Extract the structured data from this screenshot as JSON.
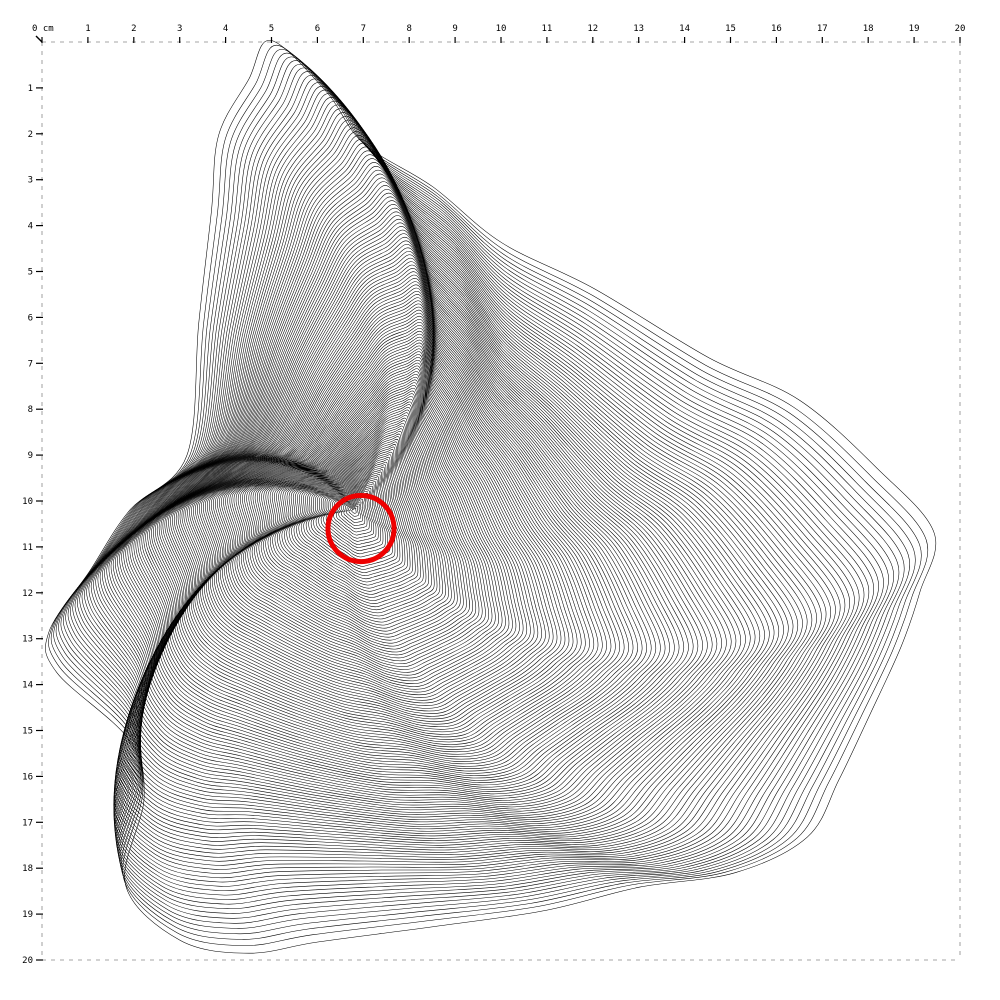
{
  "ruler": {
    "unit": "cm",
    "min": 0,
    "max": 20,
    "step": 1,
    "top_labels": [
      "0 cm",
      "1",
      "2",
      "3",
      "4",
      "5",
      "6",
      "7",
      "8",
      "9",
      "10",
      "11",
      "12",
      "13",
      "14",
      "15",
      "16",
      "17",
      "18",
      "19",
      "20"
    ],
    "left_labels": [
      "1",
      "2",
      "3",
      "4",
      "5",
      "6",
      "7",
      "8",
      "9",
      "10",
      "11",
      "12",
      "13",
      "14",
      "15",
      "16",
      "17",
      "18",
      "19",
      "20"
    ]
  },
  "artwork": {
    "description_icon": "contour-line-drawing",
    "line_color": "#000000",
    "line_count": 150,
    "outline_cm": [
      [
        5.0,
        0.05
      ],
      [
        6.2,
        1.2
      ],
      [
        7.0,
        2.3
      ],
      [
        8.5,
        3.2
      ],
      [
        10.0,
        4.4
      ],
      [
        12.0,
        5.4
      ],
      [
        14.5,
        6.9
      ],
      [
        16.5,
        7.8
      ],
      [
        18.3,
        9.3
      ],
      [
        19.6,
        10.7
      ],
      [
        19.3,
        12.0
      ],
      [
        18.8,
        13.2
      ],
      [
        18.0,
        14.6
      ],
      [
        17.2,
        16.0
      ],
      [
        16.5,
        17.2
      ],
      [
        15.0,
        18.0
      ],
      [
        13.0,
        18.4
      ],
      [
        11.0,
        19.0
      ],
      [
        8.5,
        19.4
      ],
      [
        6.0,
        19.7
      ],
      [
        4.5,
        19.9
      ],
      [
        3.0,
        19.6
      ],
      [
        1.8,
        18.4
      ],
      [
        2.2,
        16.5
      ],
      [
        1.9,
        15.2
      ],
      [
        0.4,
        13.7
      ],
      [
        0.3,
        12.8
      ],
      [
        1.2,
        11.5
      ],
      [
        2.0,
        10.2
      ],
      [
        3.1,
        9.0
      ],
      [
        3.3,
        6.0
      ],
      [
        3.6,
        3.5
      ],
      [
        3.8,
        1.9
      ],
      [
        4.5,
        0.8
      ]
    ],
    "focus_cm": [
      6.8,
      10.2
    ]
  },
  "marker": {
    "icon": "red-circle-marker",
    "color": "#ee0000",
    "center_cm": [
      6.95,
      10.6
    ],
    "radius_cm": 0.72
  }
}
